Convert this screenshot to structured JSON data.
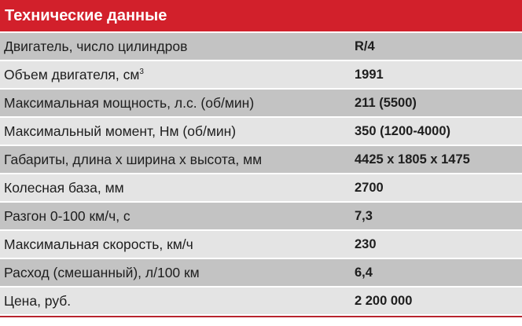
{
  "title": "Технические данные",
  "colors": {
    "header": "#d2202b",
    "row_dark": "#c3c3c3",
    "row_light": "#e4e4e4"
  },
  "rows": [
    {
      "label": "Двигатель, число цилиндров",
      "value": "R/4"
    },
    {
      "label": "Объем двигателя, см",
      "sup": "3",
      "value": "1991"
    },
    {
      "label": "Максимальная мощность, л.с. (об/мин)",
      "value": "211 (5500)"
    },
    {
      "label": "Максимальный момент, Нм (об/мин)",
      "value": "350 (1200-4000)"
    },
    {
      "label": "Габариты, длина х ширина х высота, мм",
      "value": "4425 х 1805 х 1475"
    },
    {
      "label": "Колесная база, мм",
      "value": "2700"
    },
    {
      "label": "Разгон 0-100 км/ч, с",
      "value": "7,3"
    },
    {
      "label": "Максимальная скорость, км/ч",
      "value": "230"
    },
    {
      "label": "Расход (смешанный), л/100 км",
      "value": "6,4"
    },
    {
      "label": "Цена, руб.",
      "value": "2 200 000"
    }
  ]
}
